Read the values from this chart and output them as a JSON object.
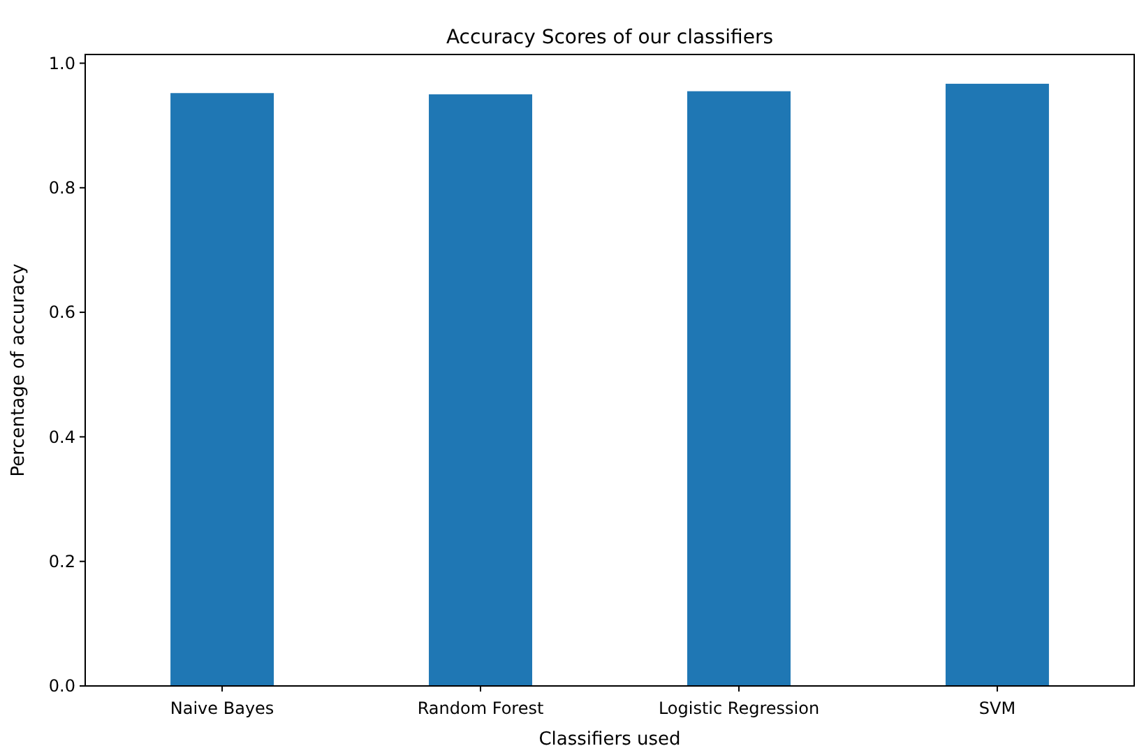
{
  "chart_data": {
    "type": "bar",
    "title": "Accuracy Scores of our classifiers",
    "xlabel": "Classifiers used",
    "ylabel": "Percentage of accuracy",
    "categories": [
      "Naive Bayes",
      "Random Forest",
      "Logistic Regression",
      "SVM"
    ],
    "values": [
      0.952,
      0.95,
      0.955,
      0.967
    ],
    "color": "#1f77b4",
    "ylim": [
      0,
      1.014
    ],
    "yticks": [
      {
        "value": 0,
        "label": "0.0"
      },
      {
        "value": 0.2,
        "label": "0.2"
      },
      {
        "value": 0.4,
        "label": "0.4"
      },
      {
        "value": 0.6,
        "label": "0.6"
      },
      {
        "value": 0.8,
        "label": "0.8"
      },
      {
        "value": 1,
        "label": "1.0"
      }
    ]
  }
}
